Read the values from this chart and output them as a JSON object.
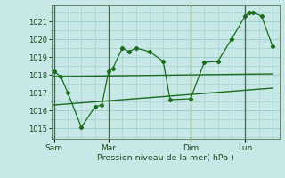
{
  "xlabel": "Pression niveau de la mer( hPa )",
  "bg_color": "#c8e8e8",
  "grid_color": "#99cccc",
  "line_color": "#1a6b1a",
  "sep_color": "#446644",
  "yticks": [
    1015,
    1016,
    1017,
    1018,
    1019,
    1020,
    1021
  ],
  "ylim": [
    1014.4,
    1021.9
  ],
  "day_labels": [
    "Sam",
    "Mar",
    "Dim",
    "Lun"
  ],
  "day_positions": [
    0,
    4,
    10,
    14
  ],
  "xlim": [
    -0.2,
    16.5
  ],
  "series1_x": [
    0,
    0.5,
    1,
    2,
    3,
    3.5,
    4,
    4.3,
    5,
    5.5,
    6,
    7,
    8,
    8.5,
    10,
    11,
    12,
    13,
    14,
    14.3,
    14.6,
    15.2,
    16
  ],
  "series1_y": [
    1018.2,
    1017.9,
    1017.0,
    1015.05,
    1016.2,
    1016.3,
    1018.2,
    1018.35,
    1019.5,
    1019.3,
    1019.5,
    1019.3,
    1018.75,
    1016.6,
    1016.65,
    1018.7,
    1018.75,
    1020.0,
    1021.3,
    1021.5,
    1021.5,
    1021.3,
    1019.6
  ],
  "trend1_x": [
    0,
    16
  ],
  "trend1_y": [
    1017.9,
    1018.05
  ],
  "trend2_x": [
    0,
    16
  ],
  "trend2_y": [
    1016.3,
    1017.25
  ]
}
